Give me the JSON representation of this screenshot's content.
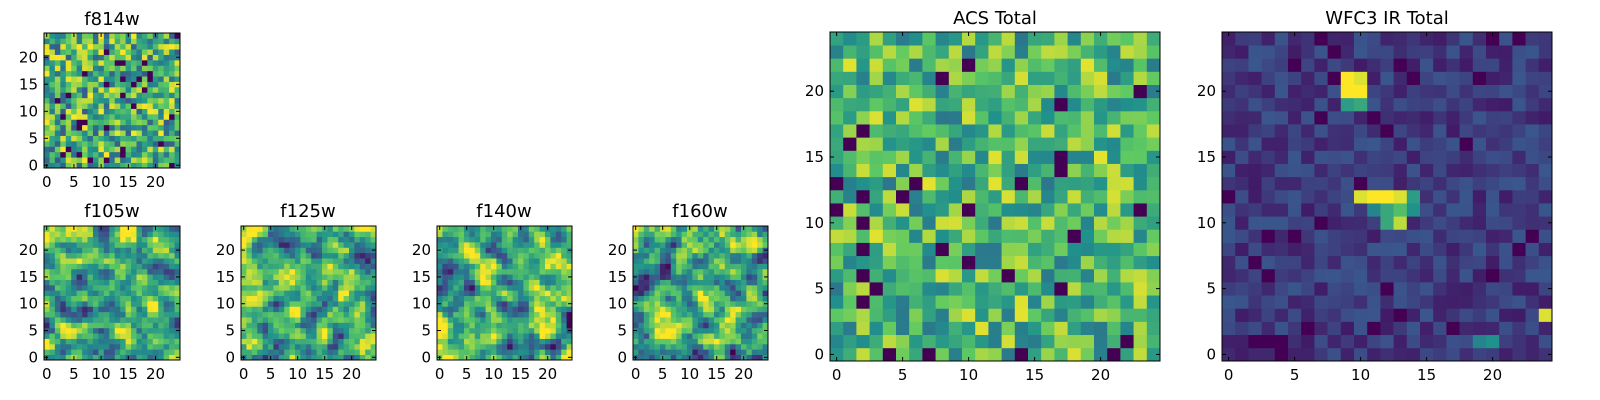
{
  "colormap": [
    "#440154",
    "#3b528b",
    "#21918c",
    "#5ec962",
    "#fde725"
  ],
  "chart_data": [
    {
      "id": "f814w",
      "type": "heatmap",
      "title": "f814w",
      "size": 25,
      "xticks": [
        0,
        5,
        10,
        15,
        20
      ],
      "yticks": [
        0,
        5,
        10,
        15,
        20
      ],
      "xlim": [
        -0.5,
        24.5
      ],
      "ylim": [
        -0.5,
        24.5
      ],
      "style": "noise",
      "bias": 0.62,
      "spread": 0.38,
      "seed": 11,
      "blobs": []
    },
    {
      "id": "f105w",
      "type": "heatmap",
      "title": "f105w",
      "size": 25,
      "xticks": [
        0,
        5,
        10,
        15,
        20
      ],
      "yticks": [
        0,
        5,
        10,
        15,
        20
      ],
      "xlim": [
        -0.5,
        24.5
      ],
      "ylim": [
        -0.5,
        24.5
      ],
      "style": "smooth",
      "bias": 0.62,
      "spread": 0.4,
      "seed": 23,
      "blobs": []
    },
    {
      "id": "f125w",
      "type": "heatmap",
      "title": "f125w",
      "size": 25,
      "xticks": [
        0,
        5,
        10,
        15,
        20
      ],
      "yticks": [
        0,
        5,
        10,
        15,
        20
      ],
      "xlim": [
        -0.5,
        24.5
      ],
      "ylim": [
        -0.5,
        24.5
      ],
      "style": "smooth",
      "bias": 0.62,
      "spread": 0.4,
      "seed": 37,
      "blobs": []
    },
    {
      "id": "f140w",
      "type": "heatmap",
      "title": "f140w",
      "size": 25,
      "xticks": [
        0,
        5,
        10,
        15,
        20
      ],
      "yticks": [
        0,
        5,
        10,
        15,
        20
      ],
      "xlim": [
        -0.5,
        24.5
      ],
      "ylim": [
        -0.5,
        24.5
      ],
      "style": "smooth",
      "bias": 0.64,
      "spread": 0.4,
      "seed": 51,
      "blobs": []
    },
    {
      "id": "f160w",
      "type": "heatmap",
      "title": "f160w",
      "size": 25,
      "xticks": [
        0,
        5,
        10,
        15,
        20
      ],
      "yticks": [
        0,
        5,
        10,
        15,
        20
      ],
      "xlim": [
        -0.5,
        24.5
      ],
      "ylim": [
        -0.5,
        24.5
      ],
      "style": "smooth",
      "bias": 0.62,
      "spread": 0.4,
      "seed": 67,
      "blobs": []
    },
    {
      "id": "acs_total",
      "type": "heatmap",
      "title": "ACS Total",
      "size": 25,
      "xticks": [
        0,
        5,
        10,
        15,
        20
      ],
      "yticks": [
        0,
        5,
        10,
        15,
        20
      ],
      "xlim": [
        -0.5,
        24.5
      ],
      "ylim": [
        -0.5,
        24.5
      ],
      "style": "noise",
      "bias": 0.66,
      "spread": 0.3,
      "seed": 79,
      "blobs": []
    },
    {
      "id": "wfc3_ir_total",
      "type": "heatmap",
      "title": "WFC3 IR Total",
      "size": 25,
      "xticks": [
        0,
        5,
        10,
        15,
        20
      ],
      "yticks": [
        0,
        5,
        10,
        15,
        20
      ],
      "xlim": [
        -0.5,
        24.5
      ],
      "ylim": [
        -0.5,
        24.5
      ],
      "style": "noise",
      "bias": 0.17,
      "spread": 0.1,
      "seed": 97,
      "blobs": [
        [
          9,
          20,
          1.0
        ],
        [
          10,
          20,
          1.0
        ],
        [
          9,
          21,
          1.0
        ],
        [
          10,
          21,
          0.95
        ],
        [
          9,
          19,
          0.55
        ],
        [
          10,
          19,
          0.6
        ],
        [
          10,
          12,
          0.95
        ],
        [
          11,
          12,
          1.0
        ],
        [
          12,
          12,
          1.0
        ],
        [
          13,
          12,
          0.95
        ],
        [
          11,
          11,
          0.45
        ],
        [
          12,
          11,
          0.6
        ],
        [
          13,
          11,
          0.7
        ],
        [
          12,
          10,
          0.6
        ],
        [
          13,
          10,
          0.9
        ],
        [
          14,
          11,
          0.5
        ],
        [
          14,
          12,
          0.55
        ],
        [
          24,
          3,
          0.95
        ],
        [
          19,
          1,
          0.45
        ],
        [
          20,
          1,
          0.5
        ]
      ]
    }
  ]
}
